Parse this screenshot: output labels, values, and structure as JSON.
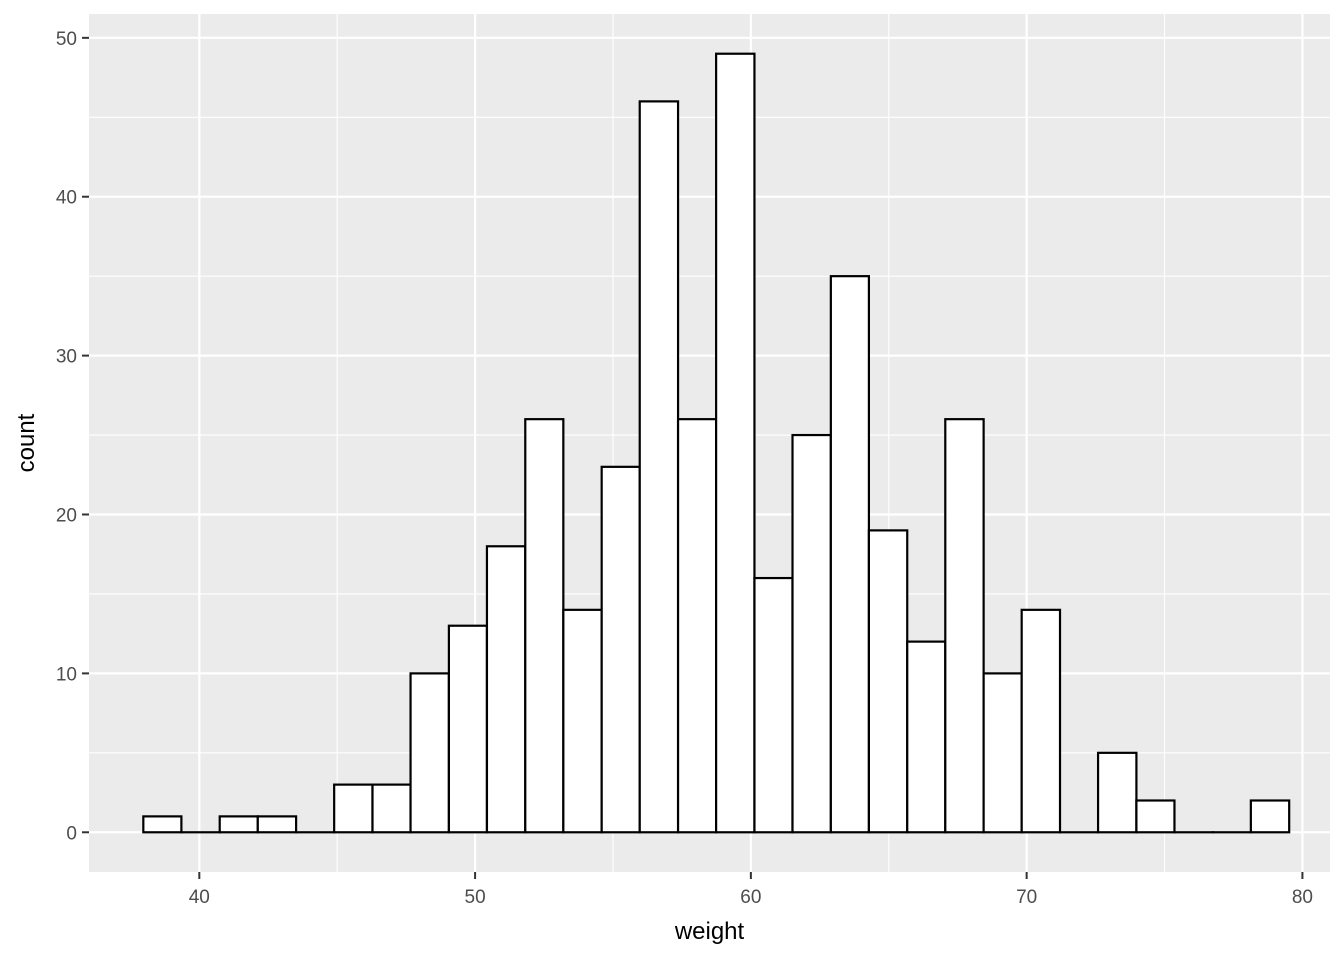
{
  "chart_data": {
    "type": "bar",
    "subtype": "histogram",
    "title": "",
    "xlabel": "weight",
    "ylabel": "count",
    "xlim": [
      36.0,
      81.0
    ],
    "ylim": [
      -2.5,
      51.5
    ],
    "x_ticks": [
      40,
      50,
      60,
      70,
      80
    ],
    "y_ticks": [
      0,
      10,
      20,
      30,
      40,
      50
    ],
    "x_minor_ticks": [
      45,
      55,
      65,
      75
    ],
    "y_minor_ticks": [
      5,
      15,
      25,
      35,
      45
    ],
    "grid": true,
    "bins": [
      {
        "x0": 37.97,
        "x1": 39.35,
        "count": 1
      },
      {
        "x0": 39.35,
        "x1": 40.74,
        "count": 0
      },
      {
        "x0": 40.74,
        "x1": 42.12,
        "count": 1
      },
      {
        "x0": 42.12,
        "x1": 43.51,
        "count": 1
      },
      {
        "x0": 43.51,
        "x1": 44.89,
        "count": 0
      },
      {
        "x0": 44.89,
        "x1": 46.28,
        "count": 3
      },
      {
        "x0": 46.28,
        "x1": 47.66,
        "count": 3
      },
      {
        "x0": 47.66,
        "x1": 49.05,
        "count": 10
      },
      {
        "x0": 49.05,
        "x1": 50.43,
        "count": 13
      },
      {
        "x0": 50.43,
        "x1": 51.82,
        "count": 18
      },
      {
        "x0": 51.82,
        "x1": 53.2,
        "count": 26
      },
      {
        "x0": 53.2,
        "x1": 54.59,
        "count": 14
      },
      {
        "x0": 54.59,
        "x1": 55.97,
        "count": 23
      },
      {
        "x0": 55.97,
        "x1": 57.36,
        "count": 46
      },
      {
        "x0": 57.36,
        "x1": 58.74,
        "count": 26
      },
      {
        "x0": 58.74,
        "x1": 60.13,
        "count": 49
      },
      {
        "x0": 60.13,
        "x1": 61.51,
        "count": 16
      },
      {
        "x0": 61.51,
        "x1": 62.9,
        "count": 25
      },
      {
        "x0": 62.9,
        "x1": 64.28,
        "count": 35
      },
      {
        "x0": 64.28,
        "x1": 65.67,
        "count": 19
      },
      {
        "x0": 65.67,
        "x1": 67.05,
        "count": 12
      },
      {
        "x0": 67.05,
        "x1": 68.44,
        "count": 26
      },
      {
        "x0": 68.44,
        "x1": 69.82,
        "count": 10
      },
      {
        "x0": 69.82,
        "x1": 71.21,
        "count": 14
      },
      {
        "x0": 71.21,
        "x1": 72.59,
        "count": 0
      },
      {
        "x0": 72.59,
        "x1": 73.98,
        "count": 5
      },
      {
        "x0": 73.98,
        "x1": 75.36,
        "count": 2
      },
      {
        "x0": 75.36,
        "x1": 76.75,
        "count": 0
      },
      {
        "x0": 76.75,
        "x1": 78.13,
        "count": 0
      },
      {
        "x0": 78.13,
        "x1": 79.52,
        "count": 2
      }
    ],
    "colors": {
      "panel_background": "#ebebeb",
      "grid": "#ffffff",
      "bar_fill": "#ffffff",
      "bar_outline": "#000000",
      "tick_text": "#4d4d4d",
      "tick_mark": "#333333",
      "axis_title": "#000000"
    }
  }
}
